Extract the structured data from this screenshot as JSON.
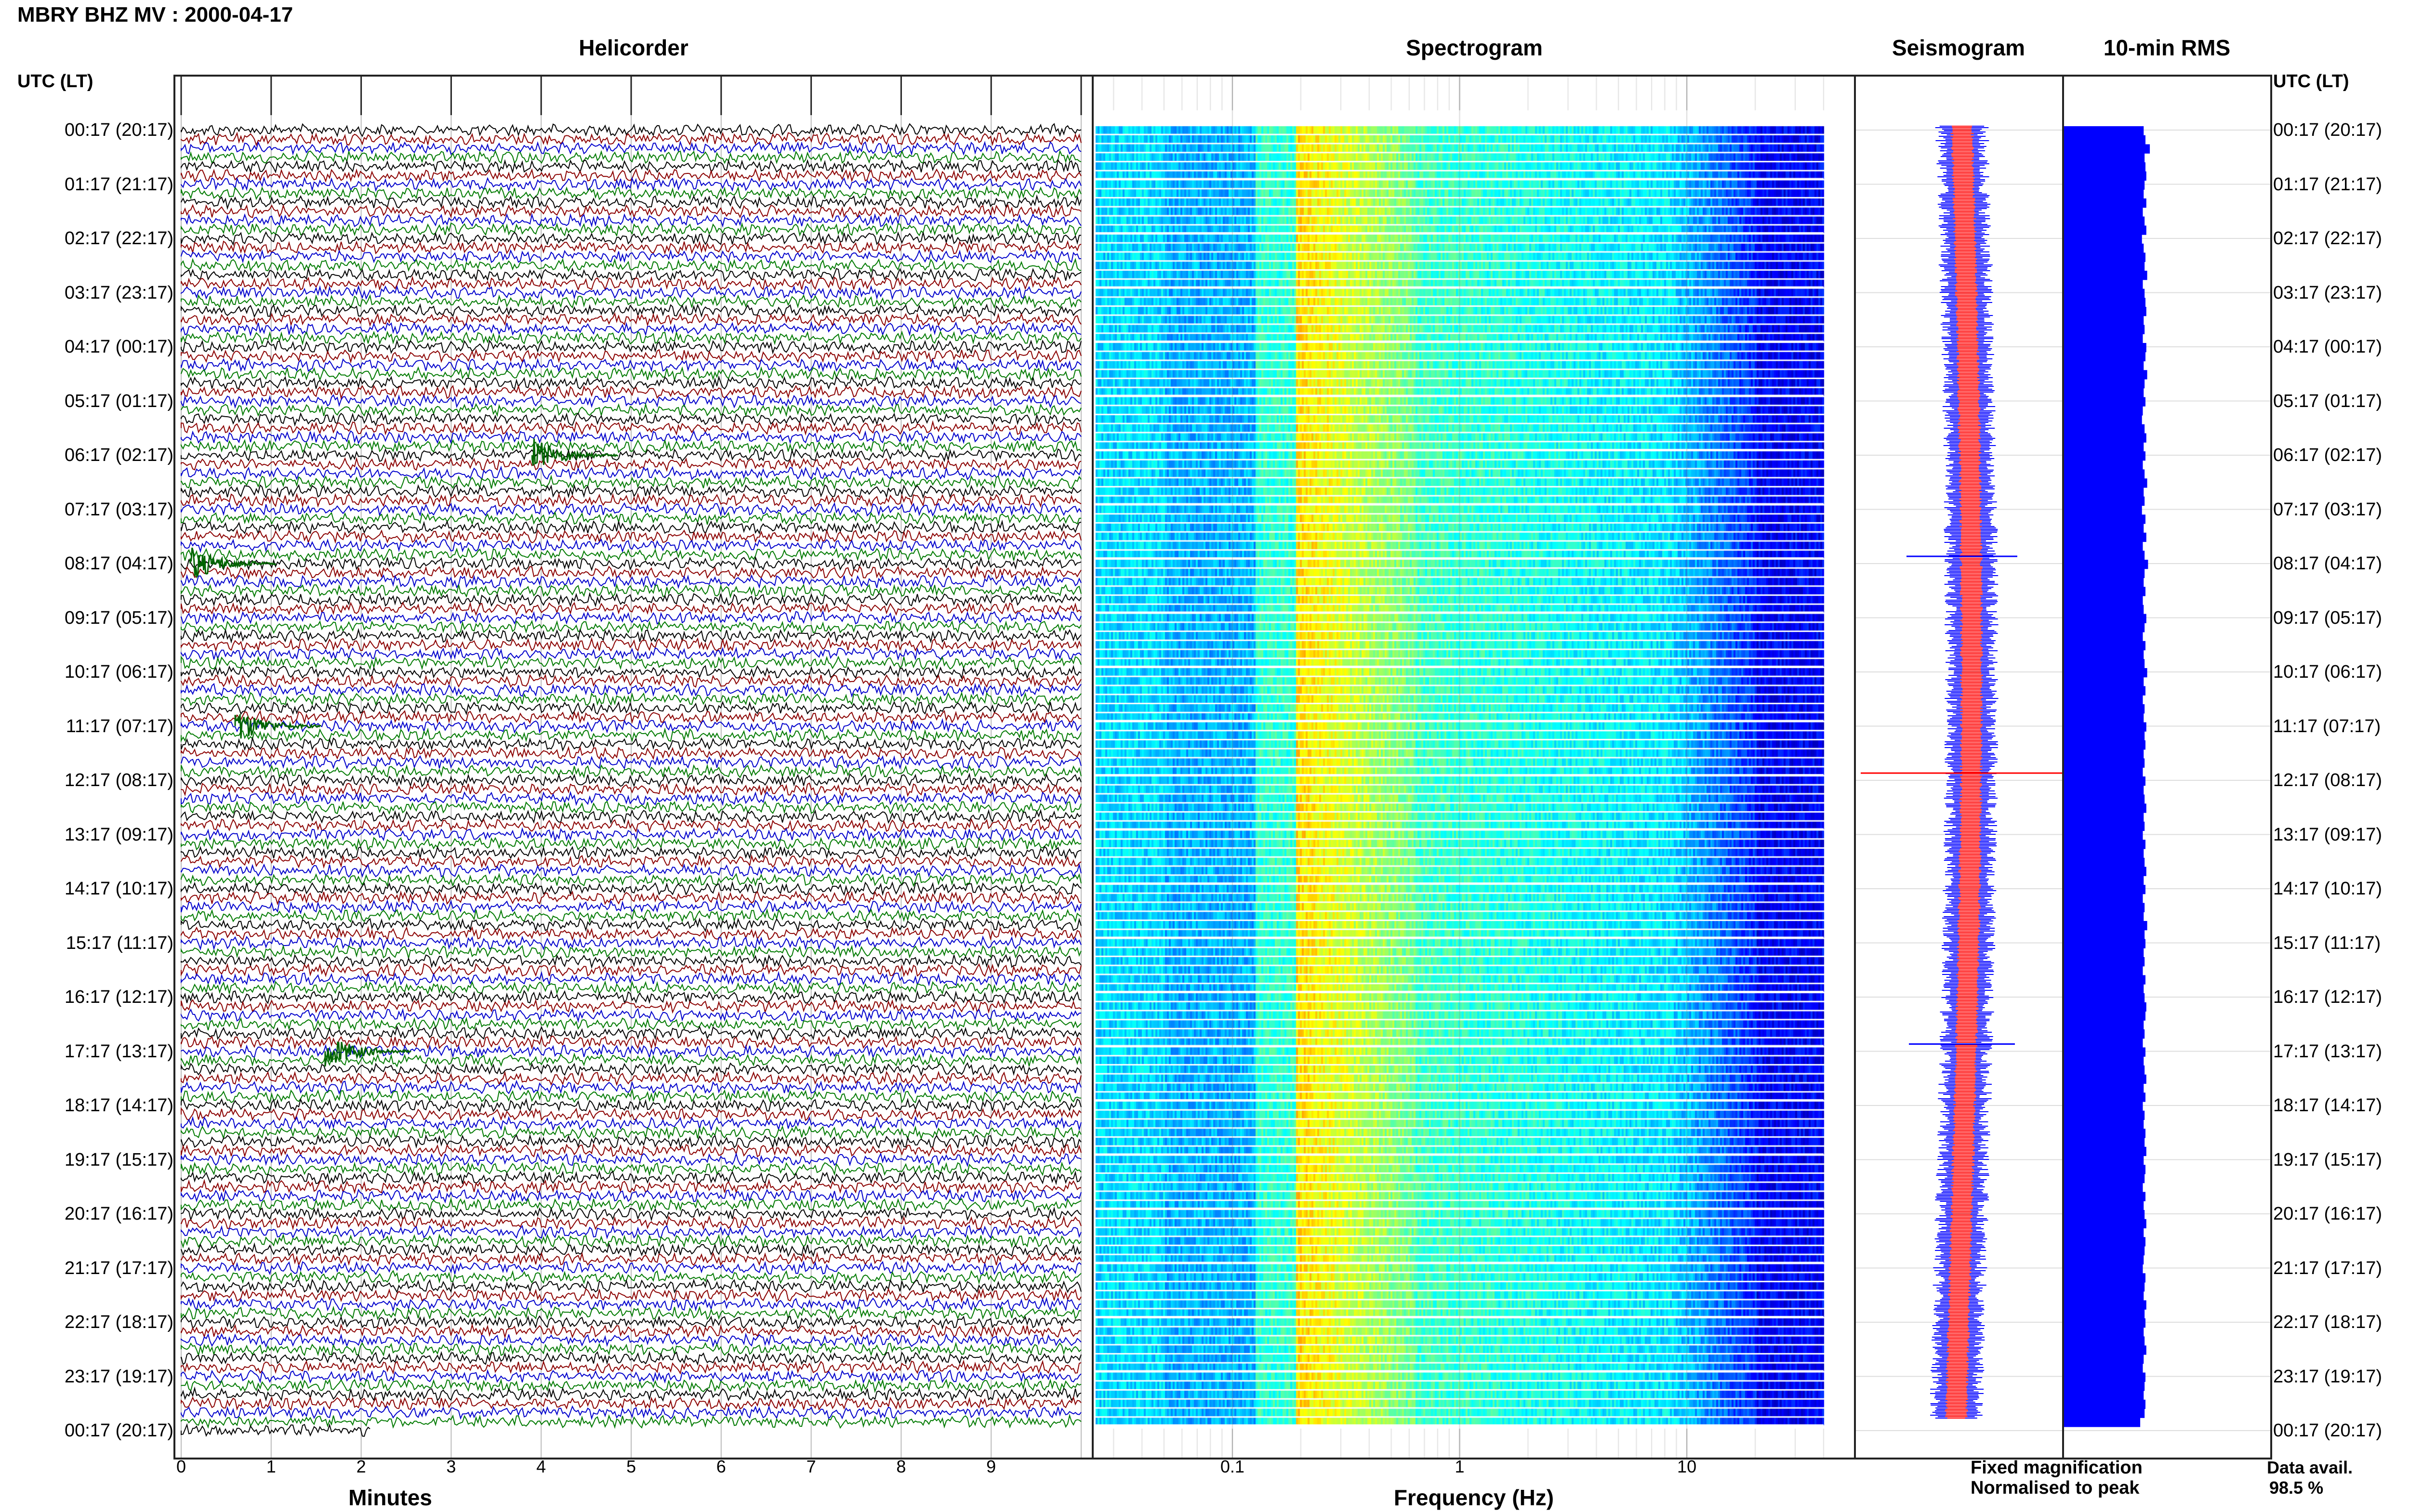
{
  "header": {
    "title": "MBRY BHZ MV : 2000-04-17"
  },
  "panels": {
    "helicorder": "Helicorder",
    "spectrogram": "Spectrogram",
    "seismogram": "Seismogram",
    "rms": "10-min RMS"
  },
  "axis_head": {
    "left": "UTC (LT)",
    "right": "UTC (LT)"
  },
  "time_labels": [
    "00:17 (20:17)",
    "01:17 (21:17)",
    "02:17 (22:17)",
    "03:17 (23:17)",
    "04:17 (00:17)",
    "05:17 (01:17)",
    "06:17 (02:17)",
    "07:17 (03:17)",
    "08:17 (04:17)",
    "09:17 (05:17)",
    "10:17 (06:17)",
    "11:17 (07:17)",
    "12:17 (08:17)",
    "13:17 (09:17)",
    "14:17 (10:17)",
    "15:17 (11:17)",
    "16:17 (12:17)",
    "17:17 (13:17)",
    "18:17 (14:17)",
    "19:17 (15:17)",
    "20:17 (16:17)",
    "21:17 (17:17)",
    "22:17 (18:17)",
    "23:17 (19:17)",
    "00:17 (20:17)"
  ],
  "x_axis": {
    "minutes_label": "Minutes",
    "minutes_ticks": [
      "0",
      "1",
      "2",
      "3",
      "4",
      "5",
      "6",
      "7",
      "8",
      "9"
    ],
    "frequency_label": "Frequency (Hz)",
    "frequency_ticks": [
      "0.1",
      "1",
      "10"
    ]
  },
  "legend": {
    "fixed": "Fixed magnification",
    "normalised": "Normalised to peak",
    "fixed_color": "#0000ff",
    "normalised_color": "#ff0000"
  },
  "data_availability": {
    "label": "Data avail.",
    "value": "98.5 %"
  },
  "colors": {
    "trace_black": "#000000",
    "trace_red": "#8b0000",
    "trace_blue": "#0000cc",
    "trace_green": "#007a00",
    "rms_bar": "#0000ff",
    "seis_red": "#ff0000"
  },
  "chart_data": [
    {
      "type": "line",
      "name": "helicorder",
      "xlabel": "Minutes",
      "xlim": [
        0,
        10
      ],
      "rows": 145,
      "last_row_minutes": 2.1,
      "trace_colors": [
        "black",
        "red",
        "blue",
        "green"
      ],
      "events": [
        {
          "hour_label": "08:17 (04:17)",
          "minute": 0.1
        },
        {
          "hour_label": "06:17 (02:17)",
          "minute": 3.9
        },
        {
          "hour_label": "11:17 (07:17)",
          "minute": 0.6
        },
        {
          "hour_label": "17:17 (13:17)",
          "minute": 1.6
        }
      ]
    },
    {
      "type": "heatmap",
      "name": "spectrogram",
      "xlabel": "Frequency (Hz)",
      "xscale": "log",
      "xlim": [
        0.025,
        40
      ],
      "x_ticks": [
        0.1,
        1,
        10
      ],
      "rows": 144
    },
    {
      "type": "line",
      "name": "seismogram",
      "series": [
        "Fixed magnification",
        "Normalised to peak"
      ]
    },
    {
      "type": "bar",
      "name": "10-min RMS",
      "orientation": "horizontal",
      "values": [
        0.8,
        0.82,
        0.87,
        0.81,
        0.82,
        0.83,
        0.81,
        0.8,
        0.83,
        0.79,
        0.81,
        0.83,
        0.78,
        0.8,
        0.82,
        0.81,
        0.84,
        0.79,
        0.81,
        0.82,
        0.83,
        0.8,
        0.81,
        0.79,
        0.83,
        0.82,
        0.8,
        0.84,
        0.81,
        0.8,
        0.82,
        0.79,
        0.78,
        0.81,
        0.83,
        0.8,
        0.82,
        0.79,
        0.81,
        0.84,
        0.8,
        0.81,
        0.78,
        0.82,
        0.8,
        0.83,
        0.79,
        0.81,
        0.85,
        0.81,
        0.8,
        0.82,
        0.79,
        0.8,
        0.83,
        0.81,
        0.79,
        0.82,
        0.8,
        0.81,
        0.84,
        0.8,
        0.82,
        0.79,
        0.81,
        0.8,
        0.83,
        0.81,
        0.82,
        0.8,
        0.81,
        0.79,
        0.82,
        0.8,
        0.81,
        0.83,
        0.8,
        0.81,
        0.79,
        0.82,
        0.8,
        0.81,
        0.83,
        0.8,
        0.82,
        0.79,
        0.81,
        0.8,
        0.84,
        0.81,
        0.82,
        0.8,
        0.81,
        0.79,
        0.82,
        0.8,
        0.81,
        0.83,
        0.82,
        0.8,
        0.81,
        0.79,
        0.82,
        0.8,
        0.81,
        0.83,
        0.8,
        0.82,
        0.79,
        0.81,
        0.8,
        0.82,
        0.81,
        0.83,
        0.8,
        0.82,
        0.81,
        0.79,
        0.82,
        0.8,
        0.81,
        0.83,
        0.8,
        0.82,
        0.81,
        0.8,
        0.79,
        0.82,
        0.81,
        0.8,
        0.83,
        0.81,
        0.82,
        0.8,
        0.81,
        0.83,
        0.8,
        0.79,
        0.82,
        0.81,
        0.8,
        0.82,
        0.81,
        0.76
      ]
    }
  ]
}
